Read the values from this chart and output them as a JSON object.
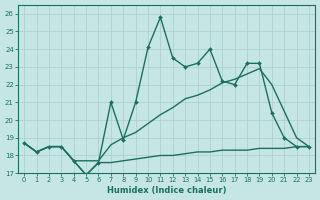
{
  "xlabel": "Humidex (Indice chaleur)",
  "xlim": [
    -0.5,
    23.5
  ],
  "ylim": [
    17,
    26.5
  ],
  "xticks": [
    0,
    1,
    2,
    3,
    4,
    5,
    6,
    7,
    8,
    9,
    10,
    11,
    12,
    13,
    14,
    15,
    16,
    17,
    18,
    19,
    20,
    21,
    22,
    23
  ],
  "yticks": [
    17,
    18,
    19,
    20,
    21,
    22,
    23,
    24,
    25,
    26
  ],
  "bg_color": "#c6e6e6",
  "grid_color": "#b0d0d0",
  "line_color": "#1a7060",
  "line1_x": [
    0,
    1,
    2,
    3,
    4,
    5,
    6,
    7,
    8,
    9,
    10,
    11,
    12,
    13,
    14,
    15,
    16,
    17,
    18,
    19,
    20,
    21,
    22,
    23
  ],
  "line1_y": [
    18.7,
    18.2,
    18.5,
    18.5,
    17.7,
    16.9,
    17.6,
    17.6,
    17.7,
    17.8,
    17.9,
    18.0,
    18.0,
    18.1,
    18.2,
    18.2,
    18.3,
    18.3,
    18.3,
    18.4,
    18.4,
    18.4,
    18.5,
    18.5
  ],
  "line2_x": [
    0,
    1,
    2,
    3,
    4,
    5,
    6,
    7,
    8,
    9,
    10,
    11,
    12,
    13,
    14,
    15,
    16,
    17,
    18,
    19,
    20,
    21,
    22,
    23
  ],
  "line2_y": [
    18.7,
    18.2,
    18.5,
    18.5,
    17.7,
    17.7,
    17.7,
    18.6,
    19.0,
    19.3,
    19.8,
    20.3,
    20.7,
    21.2,
    21.4,
    21.7,
    22.1,
    22.3,
    22.6,
    22.9,
    22.0,
    20.5,
    19.0,
    18.5
  ],
  "line3_x": [
    0,
    1,
    2,
    3,
    4,
    5,
    6,
    7,
    8,
    9,
    10,
    11,
    12,
    13,
    14,
    15,
    16,
    17,
    18,
    19,
    20,
    21,
    22,
    23
  ],
  "line3_y": [
    18.7,
    18.2,
    18.5,
    18.5,
    17.7,
    16.9,
    17.6,
    21.0,
    18.9,
    21.0,
    24.1,
    25.8,
    23.5,
    23.0,
    23.2,
    24.0,
    22.2,
    22.0,
    23.2,
    23.2,
    20.4,
    19.0,
    18.5,
    18.5
  ]
}
